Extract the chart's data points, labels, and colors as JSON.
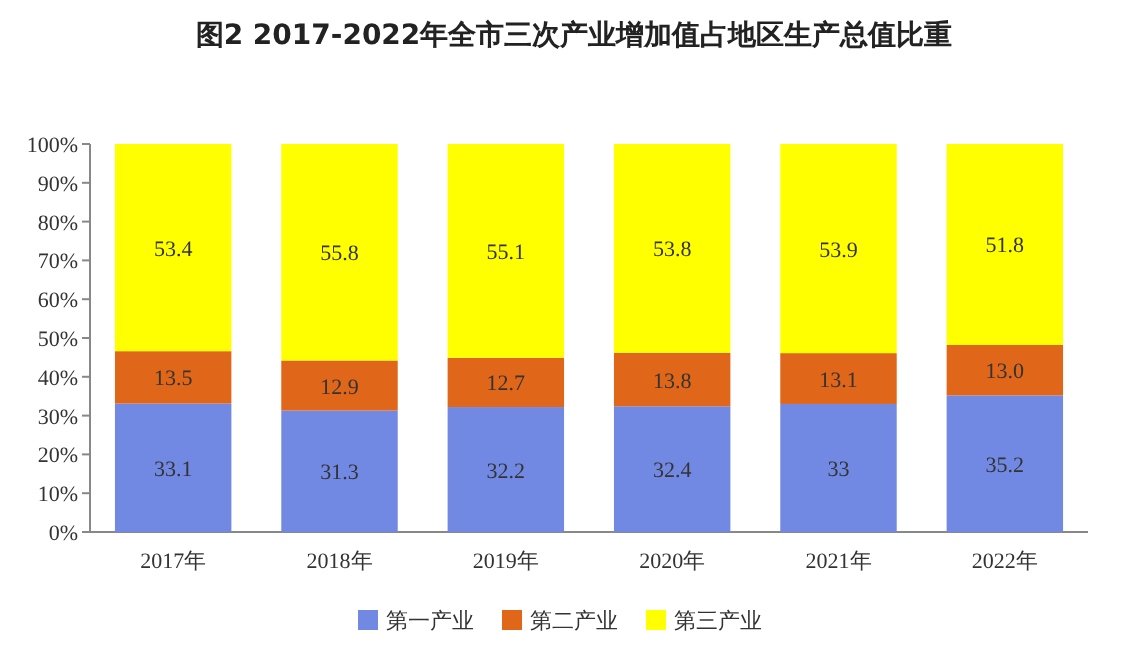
{
  "chart_data": {
    "type": "bar",
    "title": "图2  2017-2022年全市三次产业增加值占地区生产总值比重",
    "categories": [
      "2017年",
      "2018年",
      "2019年",
      "2020年",
      "2021年",
      "2022年"
    ],
    "stacked": true,
    "series": [
      {
        "name": "第一产业",
        "color": "#7189e3",
        "values": [
          33.1,
          31.3,
          32.2,
          32.4,
          33,
          35.2
        ],
        "value_labels": [
          "33.1",
          "31.3",
          "32.2",
          "32.4",
          "33",
          "35.2"
        ]
      },
      {
        "name": "第二产业",
        "color": "#e0661a",
        "values": [
          13.5,
          12.9,
          12.7,
          13.8,
          13.1,
          13.0
        ],
        "value_labels": [
          "13.5",
          "12.9",
          "12.7",
          "13.8",
          "13.1",
          "13.0"
        ]
      },
      {
        "name": "第三产业",
        "color": "#ffff00",
        "values": [
          53.4,
          55.8,
          55.1,
          53.8,
          53.9,
          51.8
        ],
        "value_labels": [
          "53.4",
          "55.8",
          "55.1",
          "53.8",
          "53.9",
          "51.8"
        ]
      }
    ],
    "ylim": [
      0,
      100
    ],
    "yticks": [
      {
        "value": 0,
        "label": "0%"
      },
      {
        "value": 10,
        "label": "10%"
      },
      {
        "value": 20,
        "label": "20%"
      },
      {
        "value": 30,
        "label": "30%"
      },
      {
        "value": 40,
        "label": "40%"
      },
      {
        "value": 50,
        "label": "50%"
      },
      {
        "value": 60,
        "label": "60%"
      },
      {
        "value": 70,
        "label": "70%"
      },
      {
        "value": 80,
        "label": "80%"
      },
      {
        "value": 90,
        "label": "90%"
      },
      {
        "value": 100,
        "label": "100%"
      }
    ],
    "grid": false,
    "legend": "bottom"
  }
}
